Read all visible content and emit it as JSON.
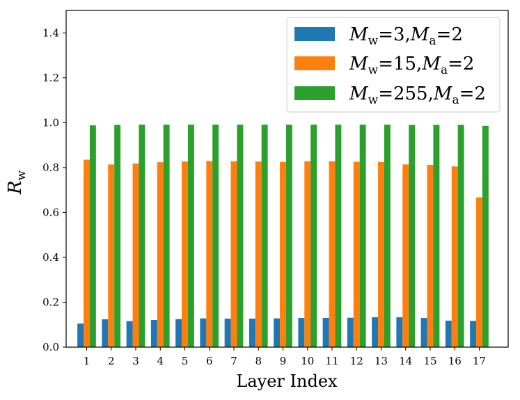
{
  "chart_data": {
    "type": "bar",
    "title": "",
    "xlabel": "Layer Index",
    "ylabel": "R",
    "ylabel_subscript": "w",
    "categories": [
      "1",
      "2",
      "3",
      "4",
      "5",
      "6",
      "7",
      "8",
      "9",
      "10",
      "11",
      "12",
      "13",
      "14",
      "15",
      "16",
      "17"
    ],
    "ylim": [
      0,
      1.5
    ],
    "yticks": [
      "0.0",
      "0.2",
      "0.4",
      "0.6",
      "0.8",
      "1.0",
      "1.2",
      "1.4"
    ],
    "grid": false,
    "legend_position": "top-right",
    "series": [
      {
        "name": "M_w = 3, M_a = 2",
        "color": "#1f77b4",
        "legend": {
          "a": "M",
          "a_sub": "w",
          "eq1": "=3,",
          "b": "M",
          "b_sub": "a",
          "eq2": "=2"
        },
        "values": [
          0.105,
          0.124,
          0.116,
          0.121,
          0.125,
          0.128,
          0.127,
          0.127,
          0.128,
          0.13,
          0.13,
          0.131,
          0.133,
          0.133,
          0.13,
          0.118,
          0.117
        ]
      },
      {
        "name": "M_w = 15, M_a = 2",
        "color": "#ff7f0e",
        "legend": {
          "a": "M",
          "a_sub": "w",
          "eq1": "=15,",
          "b": "M",
          "b_sub": "a",
          "eq2": "=2"
        },
        "values": [
          0.835,
          0.814,
          0.818,
          0.824,
          0.827,
          0.829,
          0.828,
          0.827,
          0.825,
          0.828,
          0.828,
          0.826,
          0.825,
          0.814,
          0.812,
          0.805,
          0.667
        ]
      },
      {
        "name": "M_w = 255, M_a = 2",
        "color": "#2ca02c",
        "legend": {
          "a": "M",
          "a_sub": "w",
          "eq1": "=255,",
          "b": "M",
          "b_sub": "a",
          "eq2": "=2"
        },
        "values": [
          0.988,
          0.99,
          0.991,
          0.991,
          0.991,
          0.991,
          0.991,
          0.991,
          0.991,
          0.991,
          0.991,
          0.991,
          0.991,
          0.99,
          0.99,
          0.99,
          0.986
        ]
      }
    ]
  }
}
